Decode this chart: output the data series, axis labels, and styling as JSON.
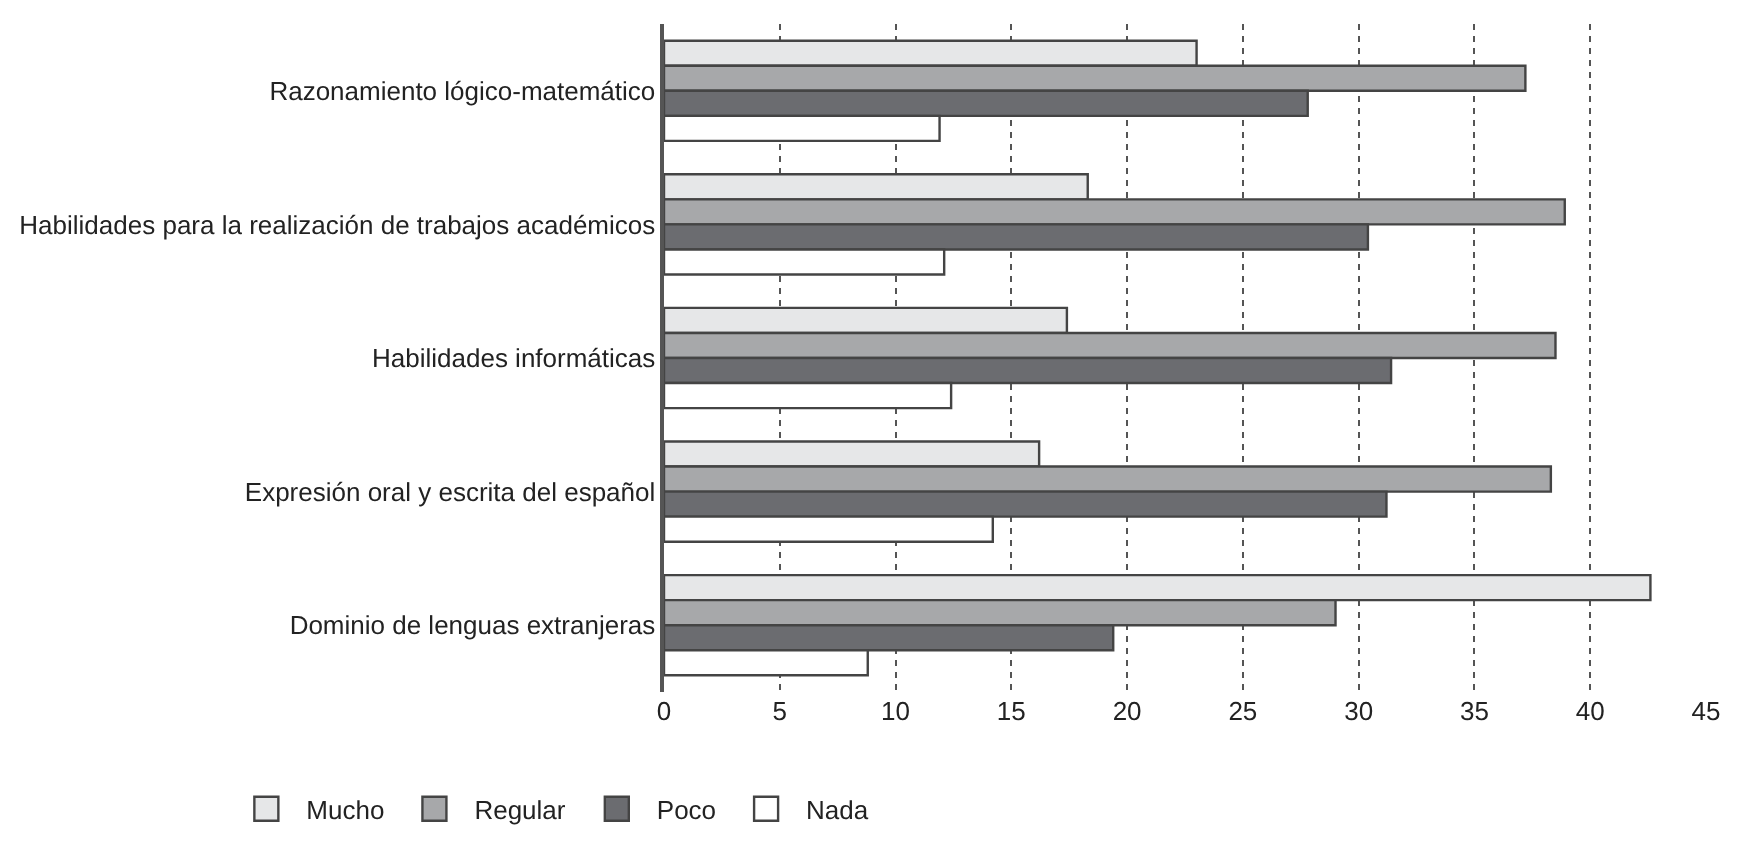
{
  "chart_data": {
    "type": "bar",
    "orientation": "horizontal",
    "categories": [
      "Razonamiento lógico-matemático",
      "Habilidades para la realización de trabajos académicos",
      "Habilidades informáticas",
      "Expresión oral y escrita del español",
      "Dominio de lenguas extranjeras"
    ],
    "series": [
      {
        "name": "Mucho",
        "color": "#e6e7e8",
        "values": [
          23.0,
          18.3,
          17.4,
          16.2,
          42.6
        ]
      },
      {
        "name": "Regular",
        "color": "#a7a8aa",
        "values": [
          37.2,
          38.9,
          38.5,
          38.3,
          29.0
        ]
      },
      {
        "name": "Poco",
        "color": "#6b6c70",
        "values": [
          27.8,
          30.4,
          31.4,
          31.2,
          19.4
        ]
      },
      {
        "name": "Nada",
        "color": "#ffffff",
        "values": [
          11.9,
          12.1,
          12.4,
          14.2,
          8.8
        ]
      }
    ],
    "xlim": [
      0,
      45
    ],
    "xticks": [
      0,
      5,
      10,
      15,
      20,
      25,
      30,
      35,
      40,
      45
    ],
    "grid": "x",
    "legend": "bottom left"
  }
}
